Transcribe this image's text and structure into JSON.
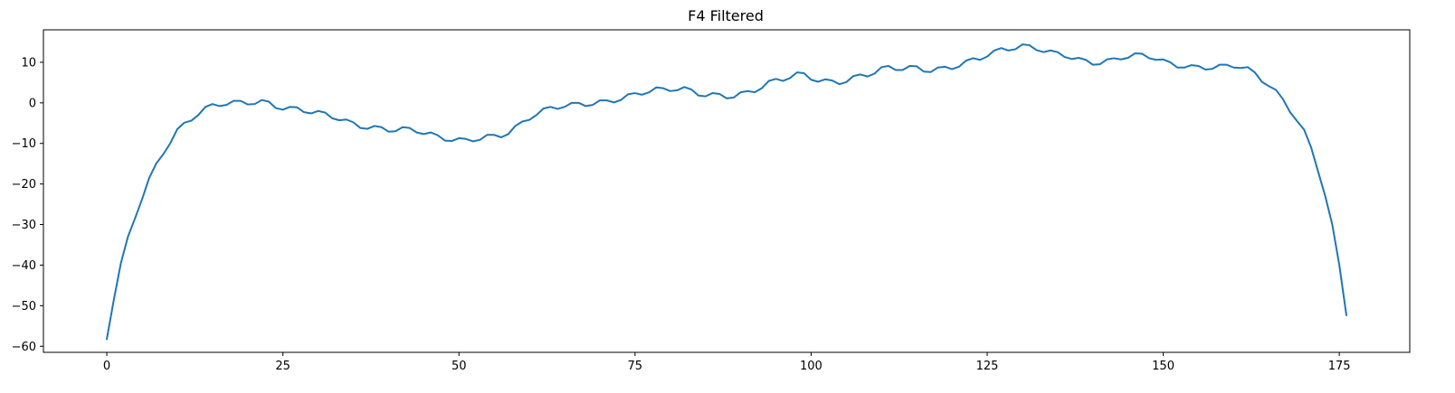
{
  "chart_data": {
    "type": "line",
    "title": "F4 Filtered",
    "xlabel": "",
    "ylabel": "",
    "xlim": [
      -9,
      185
    ],
    "ylim": [
      -61.5,
      18
    ],
    "xticks": [
      0,
      25,
      50,
      75,
      100,
      125,
      150,
      175
    ],
    "yticks": [
      -60,
      -50,
      -40,
      -30,
      -20,
      -10,
      0,
      10
    ],
    "grid": false,
    "legend": "none",
    "series": [
      {
        "color": "#1f77b4",
        "x": [
          0,
          1,
          2,
          3,
          4,
          5,
          6,
          7,
          8,
          9,
          10,
          11,
          12,
          13,
          14,
          15,
          16,
          17,
          18,
          19,
          20,
          21,
          22,
          23,
          24,
          25,
          26,
          27,
          28,
          29,
          30,
          31,
          32,
          33,
          34,
          35,
          36,
          37,
          38,
          39,
          40,
          41,
          42,
          43,
          44,
          45,
          46,
          47,
          48,
          49,
          50,
          51,
          52,
          53,
          54,
          55,
          56,
          57,
          58,
          59,
          60,
          61,
          62,
          63,
          64,
          65,
          66,
          67,
          68,
          69,
          70,
          71,
          72,
          73,
          74,
          75,
          76,
          77,
          78,
          79,
          80,
          81,
          82,
          83,
          84,
          85,
          86,
          87,
          88,
          89,
          90,
          91,
          92,
          93,
          94,
          95,
          96,
          97,
          98,
          99,
          100,
          101,
          102,
          103,
          104,
          105,
          106,
          107,
          108,
          109,
          110,
          111,
          112,
          113,
          114,
          115,
          116,
          117,
          118,
          119,
          120,
          121,
          122,
          123,
          124,
          125,
          126,
          127,
          128,
          129,
          130,
          131,
          132,
          133,
          134,
          135,
          136,
          137,
          138,
          139,
          140,
          141,
          142,
          143,
          144,
          145,
          146,
          147,
          148,
          149,
          150,
          151,
          152,
          153,
          154,
          155,
          156,
          157,
          158,
          159,
          160,
          161,
          162,
          163,
          164,
          165,
          166,
          167,
          168,
          169,
          170,
          171,
          172,
          173,
          174,
          175,
          176
        ],
        "values": [
          -58.2,
          -48.5,
          -39.5,
          -33,
          -28.5,
          -23.8,
          -18.6,
          -15,
          -12.7,
          -10,
          -6.5,
          -4.9,
          -4.4,
          -3,
          -1,
          -0.3,
          -0.8,
          -0.5,
          0.5,
          0.5,
          -0.4,
          -0.3,
          0.7,
          0.3,
          -1.3,
          -1.7,
          -1,
          -1.1,
          -2.3,
          -2.6,
          -2,
          -2.4,
          -3.8,
          -4.3,
          -4.1,
          -4.8,
          -6.2,
          -6.4,
          -5.7,
          -6,
          -7.1,
          -7,
          -6,
          -6.2,
          -7.3,
          -7.7,
          -7.3,
          -8,
          -9.3,
          -9.4,
          -8.7,
          -8.9,
          -9.5,
          -9.1,
          -7.9,
          -7.9,
          -8.5,
          -7.7,
          -5.7,
          -4.6,
          -4.2,
          -3,
          -1.4,
          -1,
          -1.5,
          -1,
          0,
          0,
          -0.8,
          -0.5,
          0.6,
          0.6,
          0.1,
          0.7,
          2.1,
          2.4,
          2,
          2.6,
          3.8,
          3.6,
          2.9,
          3.1,
          3.9,
          3.3,
          1.8,
          1.6,
          2.4,
          2.2,
          1.1,
          1.3,
          2.6,
          2.9,
          2.6,
          3.6,
          5.4,
          5.9,
          5.4,
          6.1,
          7.5,
          7.3,
          5.7,
          5.2,
          5.8,
          5.5,
          4.6,
          5.1,
          6.6,
          7,
          6.5,
          7.2,
          8.8,
          9.1,
          8.1,
          8.1,
          9.1,
          9,
          7.7,
          7.6,
          8.7,
          8.9,
          8.3,
          8.9,
          10.4,
          11,
          10.6,
          11.4,
          12.9,
          13.5,
          12.9,
          13.2,
          14.4,
          14.2,
          13,
          12.5,
          12.9,
          12.5,
          11.3,
          10.8,
          11.1,
          10.6,
          9.4,
          9.5,
          10.7,
          11,
          10.7,
          11.1,
          12.2,
          12.1,
          11,
          10.6,
          10.7,
          10,
          8.7,
          8.7,
          9.3,
          9.1,
          8.2,
          8.4,
          9.4,
          9.4,
          8.7,
          8.6,
          8.8,
          7.5,
          5.2,
          4.1,
          3.2,
          0.9,
          -2.3,
          -4.5,
          -6.6,
          -11,
          -17,
          -23,
          -30,
          -40,
          -52.3
        ]
      }
    ]
  }
}
